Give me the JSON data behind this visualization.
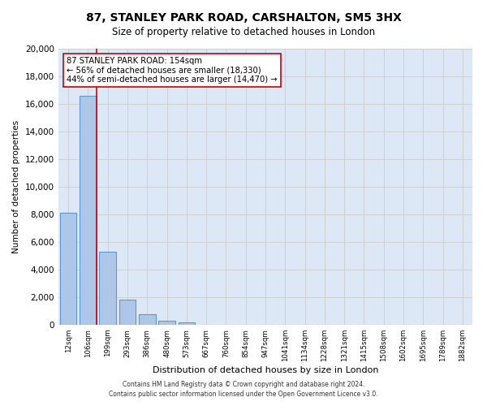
{
  "title": "87, STANLEY PARK ROAD, CARSHALTON, SM5 3HX",
  "subtitle": "Size of property relative to detached houses in London",
  "xlabel": "Distribution of detached houses by size in London",
  "ylabel": "Number of detached properties",
  "bar_labels": [
    "12sqm",
    "106sqm",
    "199sqm",
    "293sqm",
    "386sqm",
    "480sqm",
    "573sqm",
    "667sqm",
    "760sqm",
    "854sqm",
    "947sqm",
    "1041sqm",
    "1134sqm",
    "1228sqm",
    "1321sqm",
    "1415sqm",
    "1508sqm",
    "1602sqm",
    "1695sqm",
    "1789sqm",
    "1882sqm"
  ],
  "bar_values": [
    8100,
    16600,
    5300,
    1800,
    750,
    300,
    200,
    0,
    0,
    0,
    0,
    0,
    0,
    0,
    0,
    0,
    0,
    0,
    0,
    0,
    0
  ],
  "bar_color": "#aec6e8",
  "bar_edgecolor": "#5b9bd5",
  "ylim": [
    0,
    20000
  ],
  "yticks": [
    0,
    2000,
    4000,
    6000,
    8000,
    10000,
    12000,
    14000,
    16000,
    18000,
    20000
  ],
  "property_line_x": 1.42,
  "property_line_color": "#cc0000",
  "annotation_line1": "87 STANLEY PARK ROAD: 154sqm",
  "annotation_line2": "← 56% of detached houses are smaller (18,330)",
  "annotation_line3": "44% of semi-detached houses are larger (14,470) →",
  "annotation_box_color": "#ffffff",
  "annotation_box_edgecolor": "#cc0000",
  "footnote1": "Contains HM Land Registry data © Crown copyright and database right 2024.",
  "footnote2": "Contains public sector information licensed under the Open Government Licence v3.0.",
  "background_color": "#ffffff",
  "grid_color": "#cccccc",
  "plot_bg_color": "#dce8f5"
}
